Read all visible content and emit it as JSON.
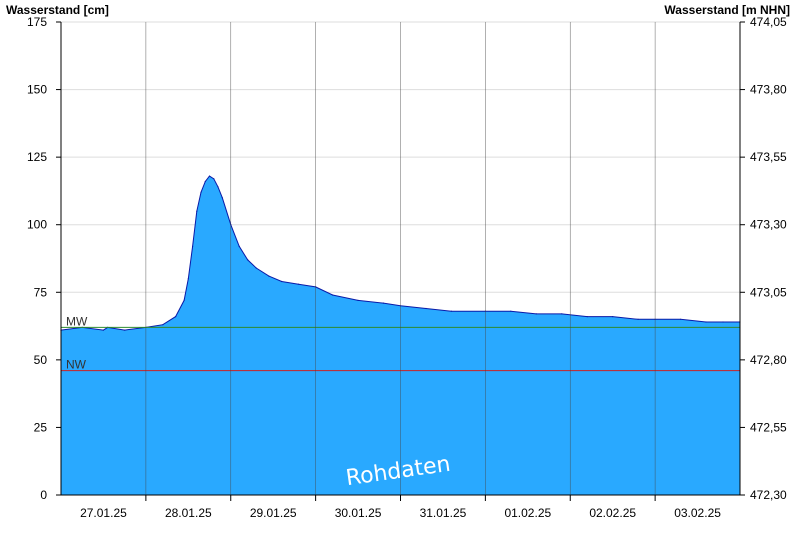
{
  "chart_data": {
    "type": "area",
    "ylabel_left": "Wasserstand [cm]",
    "ylabel_right": "Wasserstand [m NHN]",
    "ylim": [
      0,
      175
    ],
    "yticks_left": [
      "0",
      "25",
      "50",
      "75",
      "100",
      "125",
      "150",
      "175"
    ],
    "yticks_left_values": [
      0,
      25,
      50,
      75,
      100,
      125,
      150,
      175
    ],
    "yticks_right": [
      "472,30",
      "472,55",
      "472,80",
      "473,05",
      "473,30",
      "473,55",
      "473,80",
      "474,05"
    ],
    "x_range": [
      0,
      8
    ],
    "x_labels": [
      "27.01.25",
      "28.01.25",
      "29.01.25",
      "30.01.25",
      "31.01.25",
      "01.02.25",
      "02.02.25",
      "03.02.25"
    ],
    "grid": true,
    "fill_color": "#29a9ff",
    "line_color": "#0a1aa8",
    "reference_lines": [
      {
        "label": "MW",
        "value": 62,
        "color": "#2e8b2e"
      },
      {
        "label": "NW",
        "value": 46,
        "color": "#cc2222"
      }
    ],
    "watermark": "Rohdaten",
    "series": [
      {
        "x": [
          0,
          0.25,
          0.5,
          0.55,
          0.75,
          1.0,
          1.2,
          1.35,
          1.45,
          1.5,
          1.55,
          1.6,
          1.65,
          1.7,
          1.75,
          1.8,
          1.85,
          1.9,
          2.0,
          2.1,
          2.2,
          2.3,
          2.45,
          2.6,
          2.8,
          3.0,
          3.2,
          3.5,
          3.8,
          4.0,
          4.3,
          4.6,
          5.0,
          5.3,
          5.6,
          5.9,
          6.2,
          6.5,
          6.8,
          7.0,
          7.3,
          7.6,
          7.8,
          8.0
        ],
        "values": [
          61,
          62,
          61,
          62,
          61,
          62,
          63,
          66,
          72,
          80,
          92,
          105,
          112,
          116,
          118,
          117,
          114,
          110,
          100,
          92,
          87,
          84,
          81,
          79,
          78,
          77,
          74,
          72,
          71,
          70,
          69,
          68,
          68,
          68,
          67,
          67,
          66,
          66,
          65,
          65,
          65,
          64,
          64,
          64
        ]
      }
    ]
  }
}
